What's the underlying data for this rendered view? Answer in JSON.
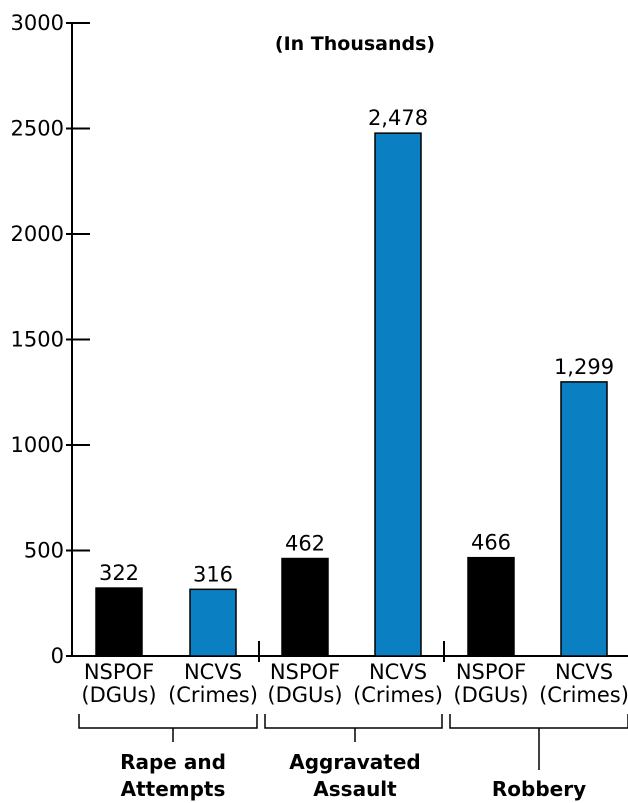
{
  "chart_data": {
    "type": "bar",
    "subtitle": "(In Thousands)",
    "ylim": [
      0,
      3000
    ],
    "y_ticks": [
      0,
      500,
      1000,
      1500,
      2000,
      2500,
      3000
    ],
    "y_tick_labels": [
      "0",
      "500",
      "1000",
      "1500",
      "2000",
      "2500",
      "3000"
    ],
    "grid": false,
    "colors": {
      "NSPOF": "#000000",
      "NCVS": "#0a7fc2"
    },
    "bars": [
      {
        "line1": "NSPOF",
        "line2": "(DGUs)",
        "value": 322,
        "label": "322",
        "series": "NSPOF"
      },
      {
        "line1": "NCVS",
        "line2": "(Crimes)",
        "value": 316,
        "label": "316",
        "series": "NCVS"
      },
      {
        "line1": "NSPOF",
        "line2": "(DGUs)",
        "value": 462,
        "label": "462",
        "series": "NSPOF"
      },
      {
        "line1": "NCVS",
        "line2": "(Crimes)",
        "value": 2478,
        "label": "2,478",
        "series": "NCVS"
      },
      {
        "line1": "NSPOF",
        "line2": "(DGUs)",
        "value": 466,
        "label": "466",
        "series": "NSPOF"
      },
      {
        "line1": "NCVS",
        "line2": "(Crimes)",
        "value": 1299,
        "label": "1,299",
        "series": "NCVS"
      }
    ],
    "groups": [
      {
        "line1": "Rape and",
        "line2": "Attempts"
      },
      {
        "line1": "Aggravated",
        "line2": "Assault"
      },
      {
        "line1": "",
        "line2": "Robbery"
      }
    ]
  }
}
